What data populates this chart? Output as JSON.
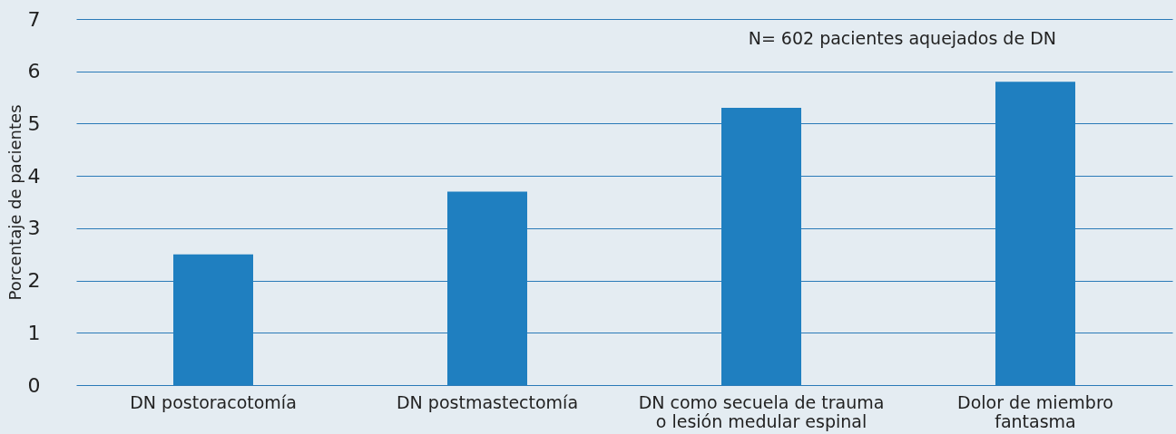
{
  "chart_data": {
    "type": "bar",
    "ylabel": "Porcentaje de pacientes",
    "categories": [
      "DN postoracotomía",
      "DN postmastectomía",
      "DN como secuela de trauma\no lesión medular espinal",
      "Dolor de miembro\nfantasma"
    ],
    "values": [
      2.5,
      3.7,
      5.3,
      5.8
    ],
    "color": "#1f7fc0",
    "ylim": [
      0,
      7
    ],
    "yticks": [
      0,
      1,
      2,
      3,
      4,
      5,
      6,
      7
    ],
    "grid": "y",
    "annotations": [
      "N= 602 pacientes aquejados de DN"
    ]
  }
}
